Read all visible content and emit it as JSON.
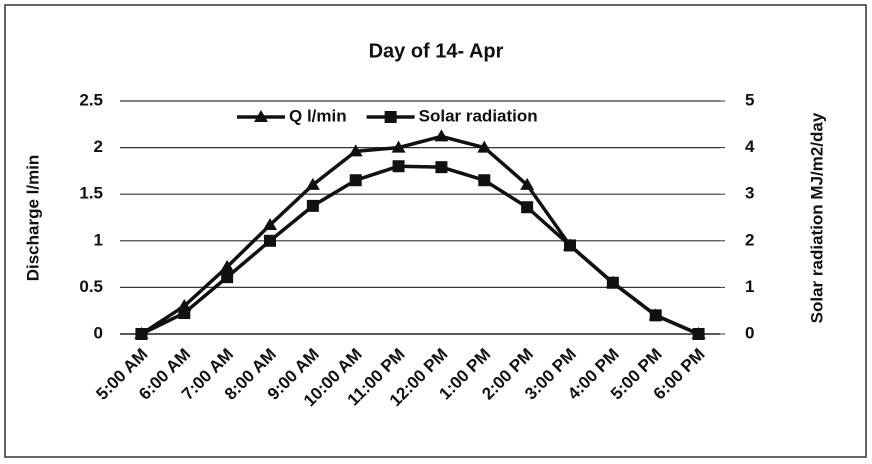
{
  "chart_data": {
    "type": "line",
    "title": "Day of 14- Apr",
    "categories": [
      "5:00 AM",
      "6:00 AM",
      "7:00 AM",
      "8:00 AM",
      "9:00 AM",
      "10:00 AM",
      "11:00 PM",
      "12:00 PM",
      "1:00 PM",
      "2:00 PM",
      "3:00 PM",
      "4:00 PM",
      "5:00 PM",
      "6:00 PM"
    ],
    "series": [
      {
        "name": "Q l/min",
        "color": "#111111",
        "marker": "triangle",
        "values": [
          0,
          0.3,
          0.72,
          1.17,
          1.6,
          1.96,
          2.0,
          2.12,
          2.0,
          1.6,
          0.95,
          0.55,
          0.2,
          0
        ]
      },
      {
        "name": "Solar radiation",
        "color": "#111111",
        "marker": "square",
        "axis": "y2",
        "values": [
          0,
          0.45,
          1.22,
          2.0,
          2.75,
          3.3,
          3.6,
          3.58,
          3.3,
          2.72,
          1.9,
          1.1,
          0.4,
          0
        ]
      }
    ],
    "ylabel": "Discharge l/min",
    "y2label": "Solar radiation MJ/m2/day",
    "ylim": [
      0,
      2.5
    ],
    "yticks": [
      0,
      0.5,
      1,
      1.5,
      2,
      2.5
    ],
    "y2lim": [
      0,
      5
    ],
    "y2ticks": [
      0,
      1,
      2,
      3,
      4,
      5
    ],
    "grid": true,
    "legend": "top"
  }
}
